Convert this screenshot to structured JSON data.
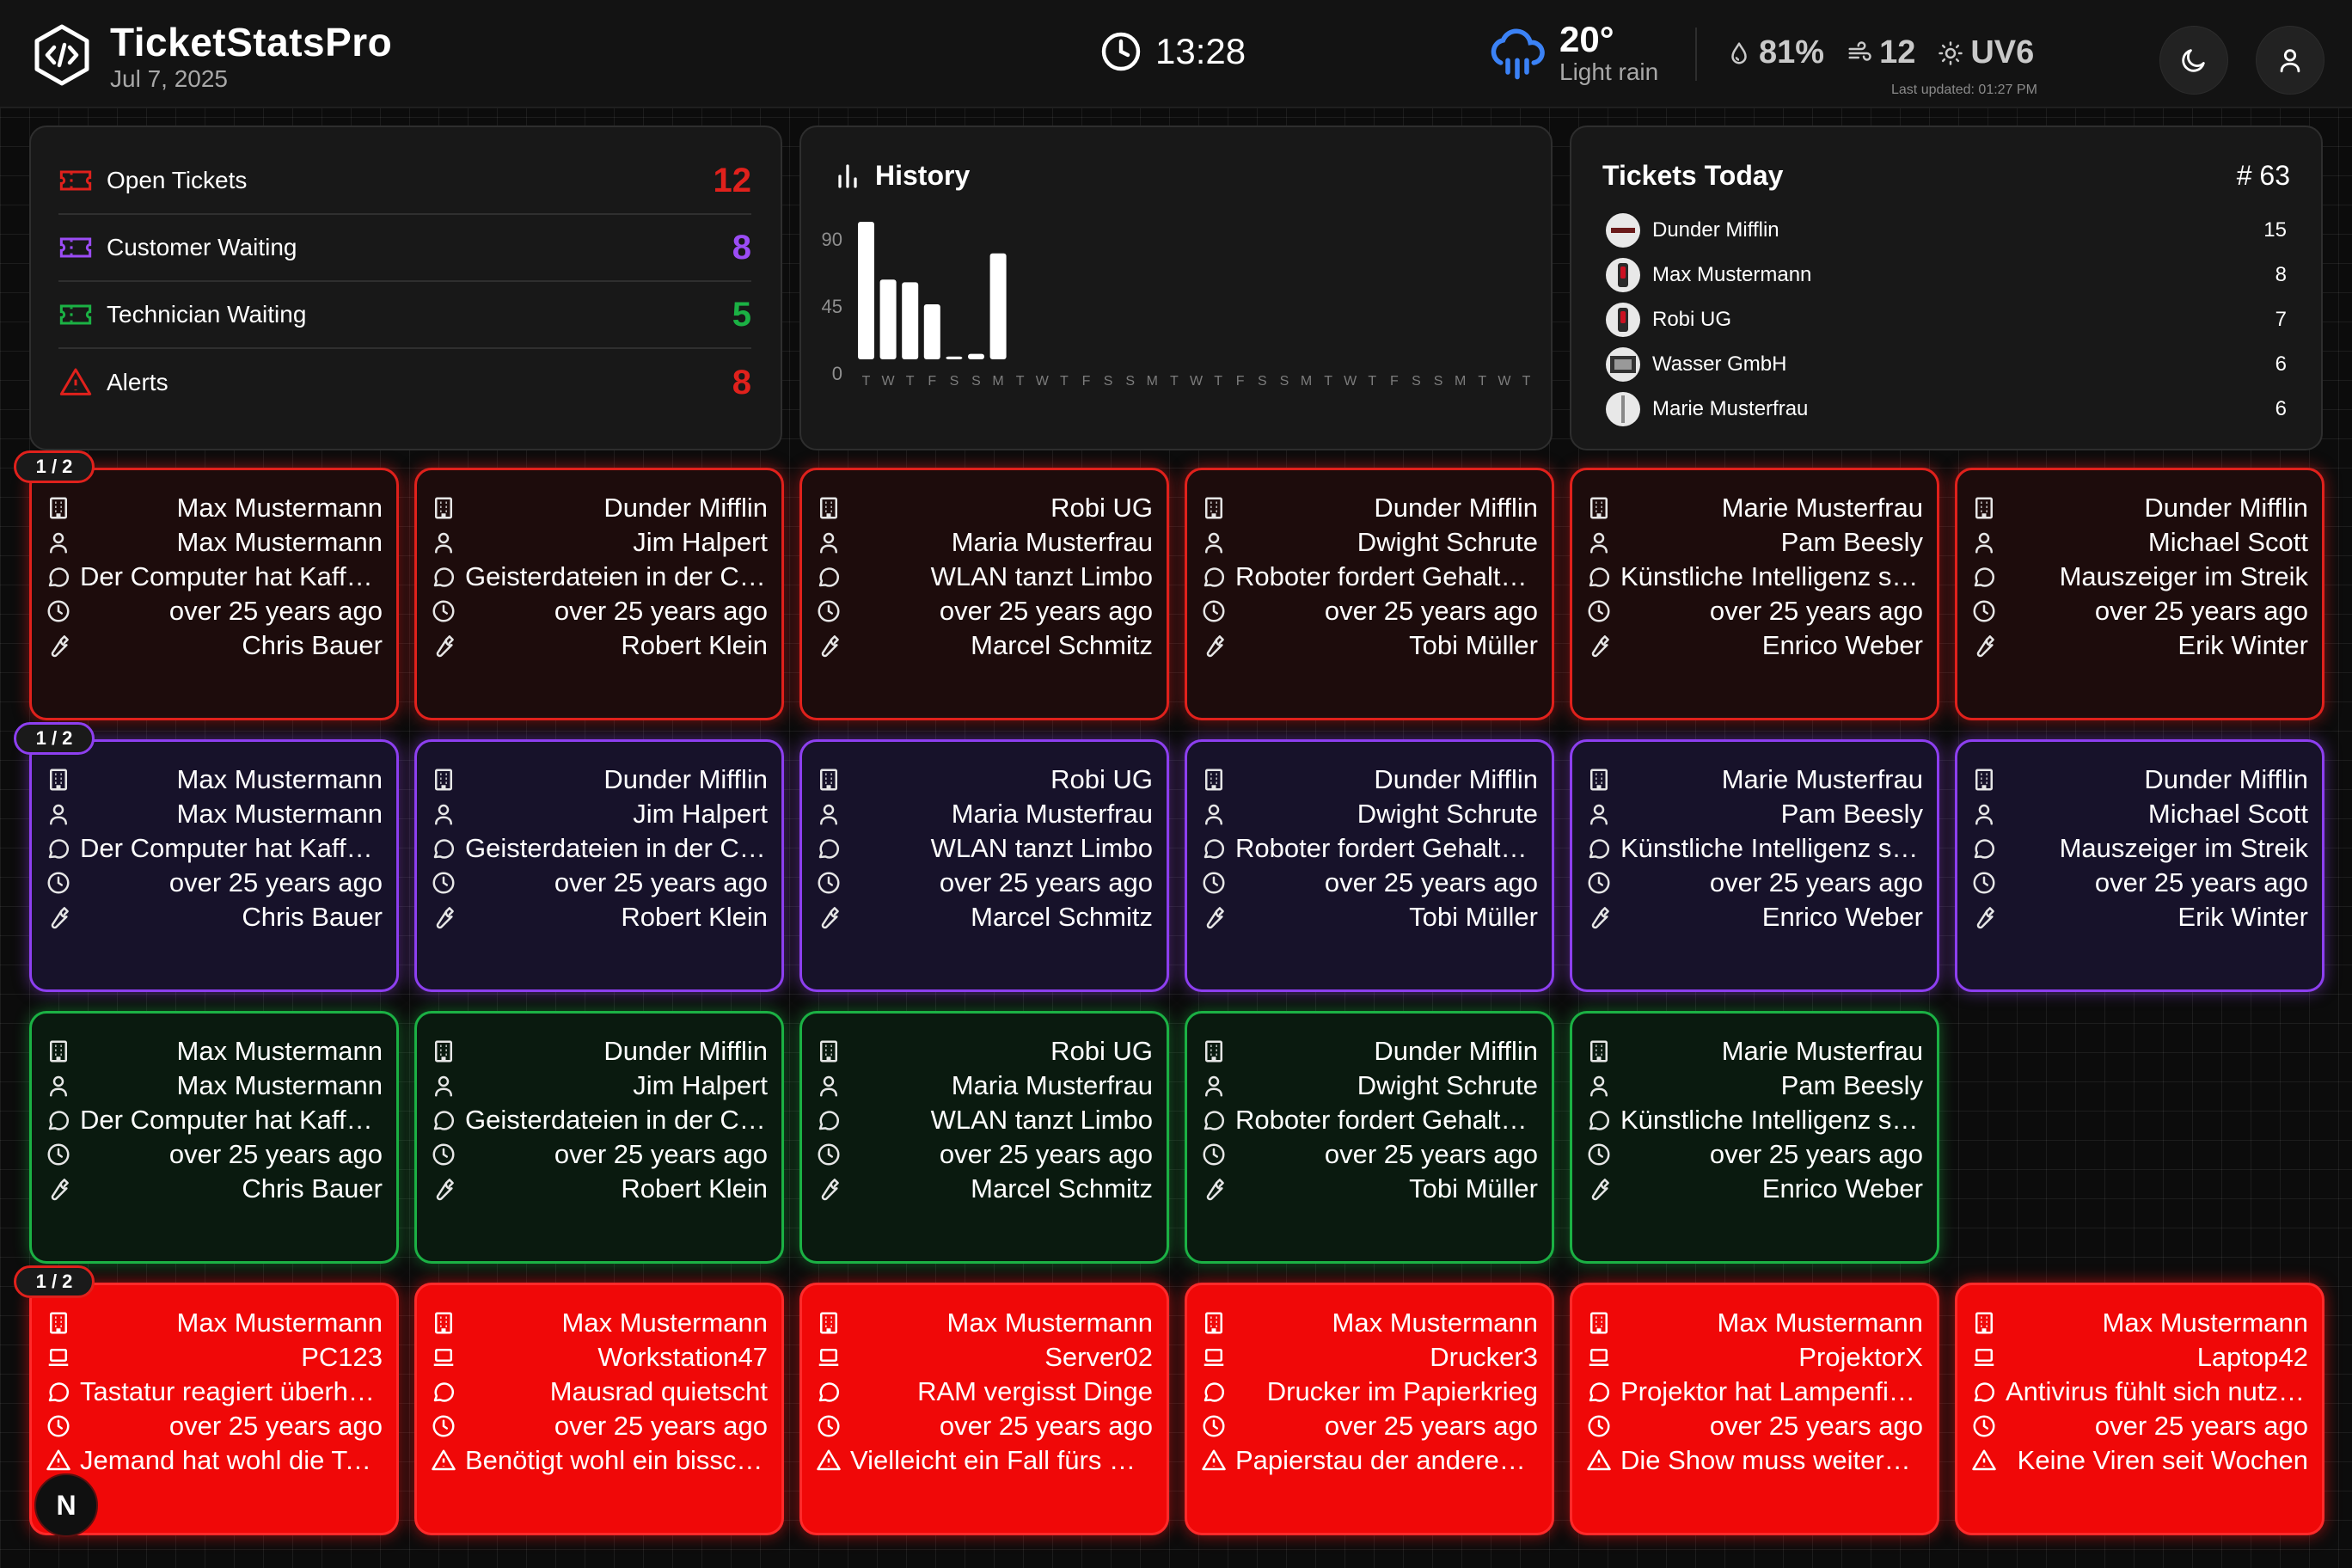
{
  "header": {
    "app_title": "TicketStatsPro",
    "date": "Jul 7, 2025",
    "time": "13:28",
    "weather": {
      "temp": "20°",
      "condition": "Light rain",
      "humidity": "81%",
      "wind": "12",
      "uv": "UV6",
      "last_updated": "Last updated: 01:27 PM"
    },
    "icons": [
      "logo-icon",
      "clock-icon",
      "rain-cloud-icon",
      "humidity-icon",
      "wind-icon",
      "sun-icon",
      "moon-icon",
      "user-icon"
    ]
  },
  "summary": [
    {
      "label": "Open Tickets",
      "count": "12",
      "color": "#e0211c"
    },
    {
      "label": "Customer Waiting",
      "count": "8",
      "color": "#9b4cf5"
    },
    {
      "label": "Technician Waiting",
      "count": "5",
      "color": "#1bb144"
    },
    {
      "label": "Alerts",
      "count": "8",
      "color": "#e0211c"
    }
  ],
  "history": {
    "title": "History",
    "chart_data": {
      "type": "bar",
      "categories": [
        "T",
        "W",
        "T",
        "F",
        "S",
        "S",
        "M",
        "T",
        "W",
        "T",
        "F",
        "S",
        "S",
        "M",
        "T",
        "W",
        "T",
        "F",
        "S",
        "S",
        "M",
        "T",
        "W",
        "T",
        "F",
        "S",
        "S",
        "M",
        "T",
        "W",
        "T"
      ],
      "values": [
        100,
        58,
        56,
        40,
        2,
        4,
        77,
        0,
        0,
        0,
        0,
        0,
        0,
        0,
        0,
        0,
        0,
        0,
        0,
        0,
        0,
        0,
        0,
        0,
        0,
        0,
        0,
        0,
        0,
        0,
        0
      ],
      "y_ticks": [
        "90",
        "45",
        "0"
      ],
      "ylim": [
        0,
        100
      ]
    }
  },
  "today": {
    "title": "Tickets Today",
    "count": "# 63",
    "rows": [
      {
        "name": "Dunder Mifflin",
        "value": "15"
      },
      {
        "name": "Max Mustermann",
        "value": "8"
      },
      {
        "name": "Robi UG",
        "value": "7"
      },
      {
        "name": "Wasser GmbH",
        "value": "6"
      },
      {
        "name": "Marie Musterfrau",
        "value": "6"
      }
    ]
  },
  "page_label": "1 / 2",
  "tickets": [
    {
      "company": "Max Mustermann",
      "contact": "Max Mustermann",
      "subject": "Der Computer hat Kaffeedurst",
      "age": "over 25 years ago",
      "tech": "Chris Bauer"
    },
    {
      "company": "Dunder Mifflin",
      "contact": "Jim Halpert",
      "subject": "Geisterdateien in der Cloud",
      "age": "over 25 years ago",
      "tech": "Robert Klein"
    },
    {
      "company": "Robi UG",
      "contact": "Maria Musterfrau",
      "subject": "WLAN tanzt Limbo",
      "age": "over 25 years ago",
      "tech": "Marcel Schmitz"
    },
    {
      "company": "Dunder Mifflin",
      "contact": "Dwight Schrute",
      "subject": "Roboter fordert Gehaltserhöhung",
      "age": "over 25 years ago",
      "tech": "Tobi Müller"
    },
    {
      "company": "Marie Musterfrau",
      "contact": "Pam Beesly",
      "subject": "Künstliche Intelligenz streikt",
      "age": "over 25 years ago",
      "tech": "Enrico Weber"
    },
    {
      "company": "Dunder Mifflin",
      "contact": "Michael Scott",
      "subject": "Mauszeiger im Streik",
      "age": "over 25 years ago",
      "tech": "Erik Winter"
    }
  ],
  "alerts": [
    {
      "customer": "Max Mustermann",
      "device": "PC123",
      "subject": "Tastatur reagiert überhaupt nicht",
      "age": "over 25 years ago",
      "note": "Jemand hat wohl die Tasten vertauscht"
    },
    {
      "customer": "Max Mustermann",
      "device": "Workstation47",
      "subject": "Mausrad quietscht",
      "age": "over 25 years ago",
      "note": "Benötigt wohl ein bisschen Öl"
    },
    {
      "customer": "Max Mustermann",
      "device": "Server02",
      "subject": "RAM vergisst Dinge",
      "age": "over 25 years ago",
      "note": "Vielleicht ein Fall fürs Gedächtnistraining"
    },
    {
      "customer": "Max Mustermann",
      "device": "Drucker3",
      "subject": "Drucker im Papierkrieg",
      "age": "over 25 years ago",
      "note": "Papierstau der anderen Art"
    },
    {
      "customer": "Max Mustermann",
      "device": "ProjektorX",
      "subject": "Projektor hat Lampenfieber",
      "age": "over 25 years ago",
      "note": "Die Show muss weitergehen"
    },
    {
      "customer": "Max Mustermann",
      "device": "Laptop42",
      "subject": "Antivirus fühlt sich nutzlos",
      "age": "over 25 years ago",
      "note": "Keine Viren seit Wochen"
    }
  ],
  "nav_button": "N"
}
